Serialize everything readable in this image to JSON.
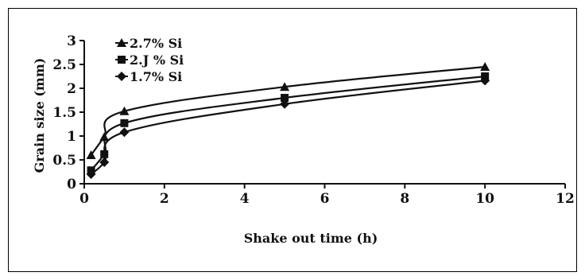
{
  "chart_data": {
    "type": "line",
    "title": "",
    "xlabel": "Shake out time (h)",
    "ylabel": "Grain size (mm)",
    "xlim": [
      0,
      12
    ],
    "ylim": [
      0,
      3
    ],
    "xticks": [
      0,
      2,
      4,
      6,
      8,
      10,
      12
    ],
    "yticks": [
      0,
      0.5,
      1,
      1.5,
      2,
      2.5,
      3
    ],
    "grid": false,
    "legend_position": "top-left",
    "series": [
      {
        "name": "2.7% Si",
        "marker": "triangle",
        "color": "#111111",
        "x": [
          0.17,
          0.5,
          1,
          5,
          10
        ],
        "y": [
          0.6,
          0.98,
          1.52,
          2.03,
          2.45
        ]
      },
      {
        "name": "2.J % Si",
        "marker": "square",
        "color": "#111111",
        "x": [
          0.17,
          0.5,
          1,
          5,
          10
        ],
        "y": [
          0.28,
          0.62,
          1.27,
          1.8,
          2.25
        ]
      },
      {
        "name": "1.7% Si",
        "marker": "diamond",
        "color": "#111111",
        "x": [
          0.17,
          0.5,
          1,
          5,
          10
        ],
        "y": [
          0.2,
          0.45,
          1.08,
          1.67,
          2.16
        ]
      }
    ]
  }
}
